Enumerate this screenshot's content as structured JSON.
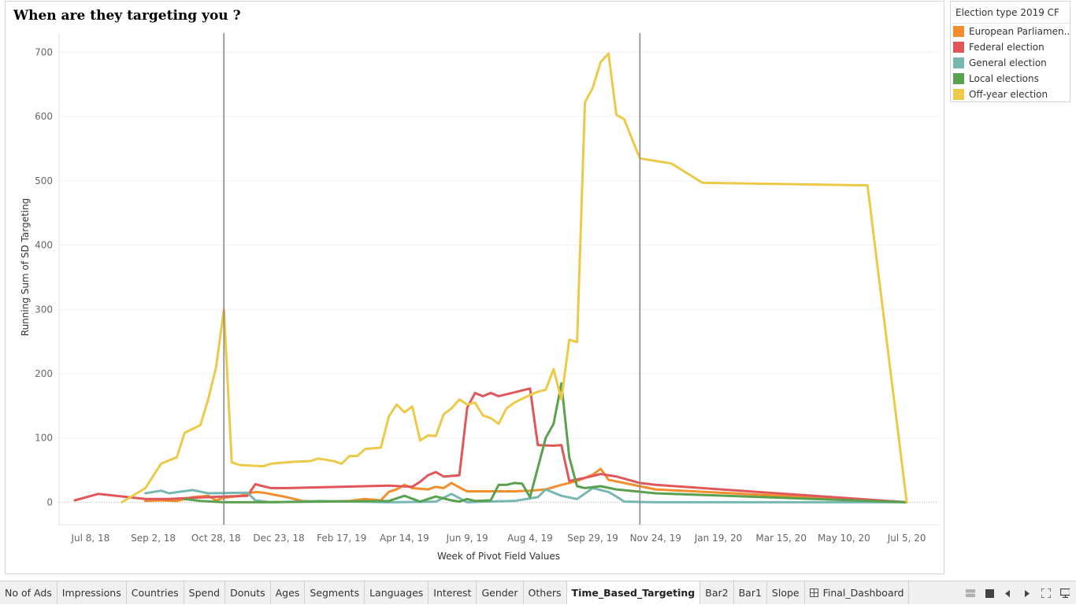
{
  "chart_data": {
    "type": "line",
    "title": "When are they targeting you ?",
    "xlabel": "Week of Pivot Field Values",
    "ylabel": "Running Sum of SD  Targeting",
    "ylim": [
      -35,
      730
    ],
    "yticks": [
      0,
      100,
      200,
      300,
      400,
      500,
      600,
      700
    ],
    "xlim": [
      "2018-06-10",
      "2020-08-02"
    ],
    "xticks": [
      {
        "date": "2018-07-08",
        "label": "Jul 8, 18"
      },
      {
        "date": "2018-09-02",
        "label": "Sep 2, 18"
      },
      {
        "date": "2018-10-28",
        "label": "Oct 28, 18"
      },
      {
        "date": "2018-12-23",
        "label": "Dec 23, 18"
      },
      {
        "date": "2019-02-17",
        "label": "Feb 17, 19"
      },
      {
        "date": "2019-04-14",
        "label": "Apr 14, 19"
      },
      {
        "date": "2019-06-09",
        "label": "Jun 9, 19"
      },
      {
        "date": "2019-08-04",
        "label": "Aug 4, 19"
      },
      {
        "date": "2019-09-29",
        "label": "Sep 29, 19"
      },
      {
        "date": "2019-11-24",
        "label": "Nov 24, 19"
      },
      {
        "date": "2020-01-19",
        "label": "Jan 19, 20"
      },
      {
        "date": "2020-03-15",
        "label": "Mar 15, 20"
      },
      {
        "date": "2020-05-10",
        "label": "May 10, 20"
      },
      {
        "date": "2020-07-05",
        "label": "Jul 5, 20"
      }
    ],
    "reference_lines": [
      "2018-11-04",
      "2019-11-10"
    ],
    "grid": true,
    "legend": {
      "title": "Election type 2019 CF",
      "position": "right"
    },
    "series": [
      {
        "name": "European Parliamen..",
        "color": "#f28e2b",
        "points": [
          [
            "2018-08-26",
            2
          ],
          [
            "2018-09-09",
            3
          ],
          [
            "2018-09-23",
            2
          ],
          [
            "2018-10-07",
            8
          ],
          [
            "2018-10-21",
            10
          ],
          [
            "2018-10-28",
            3
          ],
          [
            "2018-11-04",
            7
          ],
          [
            "2018-11-18",
            10
          ],
          [
            "2018-12-02",
            16
          ],
          [
            "2018-12-09",
            15
          ],
          [
            "2018-12-30",
            8
          ],
          [
            "2019-01-13",
            2
          ],
          [
            "2019-01-27",
            1
          ],
          [
            "2019-02-24",
            2
          ],
          [
            "2019-03-10",
            5
          ],
          [
            "2019-03-24",
            3
          ],
          [
            "2019-03-31",
            16
          ],
          [
            "2019-04-07",
            20
          ],
          [
            "2019-04-14",
            27
          ],
          [
            "2019-04-21",
            22
          ],
          [
            "2019-05-05",
            20
          ],
          [
            "2019-05-12",
            24
          ],
          [
            "2019-05-19",
            22
          ],
          [
            "2019-05-26",
            30
          ],
          [
            "2019-06-02",
            23
          ],
          [
            "2019-06-09",
            17
          ],
          [
            "2019-07-21",
            17
          ],
          [
            "2019-08-04",
            18
          ],
          [
            "2019-08-18",
            20
          ],
          [
            "2019-09-01",
            27
          ],
          [
            "2019-09-15",
            33
          ],
          [
            "2019-09-29",
            43
          ],
          [
            "2019-10-06",
            52
          ],
          [
            "2019-10-13",
            35
          ],
          [
            "2019-11-10",
            25
          ],
          [
            "2019-11-24",
            20
          ],
          [
            "2020-07-05",
            0
          ]
        ]
      },
      {
        "name": "Federal election",
        "color": "#e15759",
        "points": [
          [
            "2018-06-24",
            3
          ],
          [
            "2018-07-15",
            13
          ],
          [
            "2018-08-26",
            5
          ],
          [
            "2018-09-16",
            5
          ],
          [
            "2018-10-07",
            7
          ],
          [
            "2018-11-04",
            9
          ],
          [
            "2018-11-25",
            10
          ],
          [
            "2018-12-02",
            28
          ],
          [
            "2018-12-16",
            22
          ],
          [
            "2018-12-30",
            22
          ],
          [
            "2019-03-31",
            26
          ],
          [
            "2019-04-21",
            24
          ],
          [
            "2019-04-28",
            32
          ],
          [
            "2019-05-05",
            42
          ],
          [
            "2019-05-12",
            47
          ],
          [
            "2019-05-19",
            40
          ],
          [
            "2019-06-02",
            42
          ],
          [
            "2019-06-09",
            147
          ],
          [
            "2019-06-16",
            170
          ],
          [
            "2019-06-23",
            165
          ],
          [
            "2019-06-30",
            170
          ],
          [
            "2019-07-07",
            165
          ],
          [
            "2019-08-04",
            177
          ],
          [
            "2019-08-11",
            89
          ],
          [
            "2019-08-25",
            88
          ],
          [
            "2019-09-01",
            89
          ],
          [
            "2019-09-08",
            33
          ],
          [
            "2019-09-22",
            38
          ],
          [
            "2019-10-06",
            44
          ],
          [
            "2019-10-20",
            40
          ],
          [
            "2019-11-10",
            30
          ],
          [
            "2019-11-24",
            27
          ],
          [
            "2020-07-05",
            0
          ]
        ]
      },
      {
        "name": "General election",
        "color": "#76b7b2",
        "points": [
          [
            "2018-08-26",
            14
          ],
          [
            "2018-09-09",
            18
          ],
          [
            "2018-09-16",
            14
          ],
          [
            "2018-10-07",
            19
          ],
          [
            "2018-10-21",
            14
          ],
          [
            "2018-11-25",
            15
          ],
          [
            "2018-12-02",
            3
          ],
          [
            "2018-12-16",
            0
          ],
          [
            "2019-01-13",
            1
          ],
          [
            "2019-01-27",
            2
          ],
          [
            "2019-03-31",
            0
          ],
          [
            "2019-05-12",
            1
          ],
          [
            "2019-05-26",
            13
          ],
          [
            "2019-06-09",
            0
          ],
          [
            "2019-06-23",
            1
          ],
          [
            "2019-07-21",
            2
          ],
          [
            "2019-08-11",
            8
          ],
          [
            "2019-08-18",
            20
          ],
          [
            "2019-09-01",
            10
          ],
          [
            "2019-09-15",
            5
          ],
          [
            "2019-09-29",
            22
          ],
          [
            "2019-10-13",
            16
          ],
          [
            "2019-10-20",
            9
          ],
          [
            "2019-10-27",
            1
          ],
          [
            "2019-11-24",
            0
          ],
          [
            "2020-07-05",
            0
          ]
        ]
      },
      {
        "name": "Local elections",
        "color": "#59a14f",
        "points": [
          [
            "2018-09-30",
            5
          ],
          [
            "2018-10-14",
            2
          ],
          [
            "2018-11-04",
            0
          ],
          [
            "2018-12-09",
            0
          ],
          [
            "2019-03-31",
            2
          ],
          [
            "2019-04-14",
            10
          ],
          [
            "2019-04-28",
            1
          ],
          [
            "2019-05-12",
            9
          ],
          [
            "2019-05-26",
            3
          ],
          [
            "2019-06-02",
            1
          ],
          [
            "2019-06-09",
            5
          ],
          [
            "2019-06-16",
            2
          ],
          [
            "2019-06-30",
            3
          ],
          [
            "2019-07-07",
            27
          ],
          [
            "2019-07-14",
            27
          ],
          [
            "2019-07-21",
            30
          ],
          [
            "2019-07-28",
            29
          ],
          [
            "2019-08-04",
            8
          ],
          [
            "2019-08-18",
            100
          ],
          [
            "2019-08-25",
            122
          ],
          [
            "2019-09-01",
            185
          ],
          [
            "2019-09-08",
            70
          ],
          [
            "2019-09-15",
            25
          ],
          [
            "2019-09-22",
            22
          ],
          [
            "2019-10-06",
            25
          ],
          [
            "2019-10-20",
            20
          ],
          [
            "2019-11-24",
            14
          ],
          [
            "2020-07-05",
            0
          ]
        ]
      },
      {
        "name": "Off-year election",
        "color": "#edc948",
        "points": [
          [
            "2018-08-05",
            0
          ],
          [
            "2018-08-26",
            22
          ],
          [
            "2018-09-09",
            60
          ],
          [
            "2018-09-23",
            70
          ],
          [
            "2018-09-30",
            108
          ],
          [
            "2018-10-14",
            120
          ],
          [
            "2018-10-21",
            160
          ],
          [
            "2018-10-28",
            210
          ],
          [
            "2018-11-04",
            300
          ],
          [
            "2018-11-11",
            62
          ],
          [
            "2018-11-18",
            58
          ],
          [
            "2018-12-09",
            56
          ],
          [
            "2018-12-16",
            60
          ],
          [
            "2019-01-06",
            63
          ],
          [
            "2019-01-20",
            64
          ],
          [
            "2019-01-27",
            68
          ],
          [
            "2019-02-10",
            64
          ],
          [
            "2019-02-17",
            60
          ],
          [
            "2019-02-24",
            72
          ],
          [
            "2019-03-03",
            72
          ],
          [
            "2019-03-10",
            83
          ],
          [
            "2019-03-24",
            85
          ],
          [
            "2019-03-31",
            133
          ],
          [
            "2019-04-07",
            152
          ],
          [
            "2019-04-14",
            140
          ],
          [
            "2019-04-21",
            149
          ],
          [
            "2019-04-28",
            96
          ],
          [
            "2019-05-05",
            104
          ],
          [
            "2019-05-12",
            103
          ],
          [
            "2019-05-19",
            137
          ],
          [
            "2019-05-26",
            146
          ],
          [
            "2019-06-02",
            160
          ],
          [
            "2019-06-09",
            152
          ],
          [
            "2019-06-16",
            155
          ],
          [
            "2019-06-23",
            135
          ],
          [
            "2019-06-30",
            131
          ],
          [
            "2019-07-07",
            122
          ],
          [
            "2019-07-14",
            146
          ],
          [
            "2019-07-21",
            155
          ],
          [
            "2019-08-04",
            167
          ],
          [
            "2019-08-11",
            172
          ],
          [
            "2019-08-18",
            175
          ],
          [
            "2019-08-25",
            207
          ],
          [
            "2019-09-01",
            160
          ],
          [
            "2019-09-08",
            253
          ],
          [
            "2019-09-15",
            249
          ],
          [
            "2019-09-22",
            622
          ],
          [
            "2019-09-29",
            645
          ],
          [
            "2019-10-06",
            685
          ],
          [
            "2019-10-13",
            698
          ],
          [
            "2019-10-20",
            603
          ],
          [
            "2019-10-27",
            596
          ],
          [
            "2019-11-03",
            565
          ],
          [
            "2019-11-10",
            535
          ],
          [
            "2019-12-08",
            527
          ],
          [
            "2020-01-05",
            497
          ],
          [
            "2020-05-31",
            493
          ],
          [
            "2020-07-05",
            0
          ]
        ]
      }
    ]
  },
  "tabs": [
    {
      "label": "No of Ads"
    },
    {
      "label": "Impressions"
    },
    {
      "label": "Countries"
    },
    {
      "label": "Spend"
    },
    {
      "label": "Donuts"
    },
    {
      "label": "Ages"
    },
    {
      "label": "Segments"
    },
    {
      "label": "Languages"
    },
    {
      "label": "Interest"
    },
    {
      "label": "Gender"
    },
    {
      "label": "Others"
    },
    {
      "label": "Time_Based_Targeting",
      "active": true
    },
    {
      "label": "Bar2"
    },
    {
      "label": "Bar1"
    },
    {
      "label": "Slope"
    },
    {
      "label": "Final_Dashboard",
      "dashboard": true
    }
  ],
  "nav_icons": [
    "grid-view-icon",
    "stop-icon",
    "previous-icon",
    "next-icon",
    "fullscreen-icon",
    "present-icon"
  ]
}
